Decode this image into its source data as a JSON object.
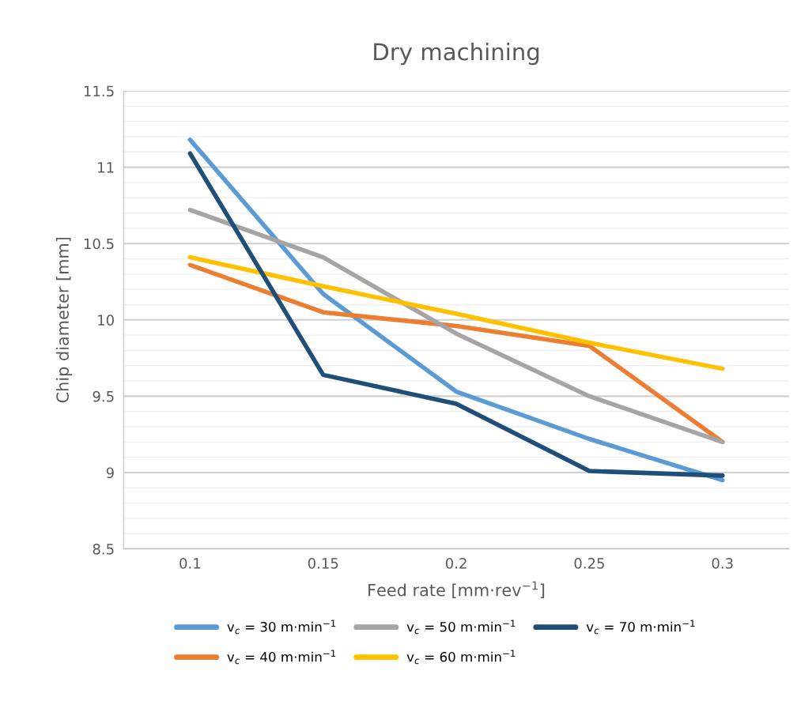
{
  "chart_data": {
    "type": "line",
    "title": "Dry machining",
    "xlabel": "Feed rate [mm·rev$^{−1}$]",
    "ylabel": "Chip diameter [mm]",
    "categories": [
      "0.1",
      "0.15",
      "0.2",
      "0.25",
      "0.3"
    ],
    "series": [
      {
        "name": "v$_{c}$ = 30 m·min$^{−1}$",
        "color": "#5b9bd5",
        "values": [
          11.18,
          10.17,
          9.53,
          9.22,
          8.95
        ]
      },
      {
        "name": "v$_{c}$ = 40 m·min$^{−1}$",
        "color": "#ed7d31",
        "values": [
          10.36,
          10.05,
          9.96,
          9.83,
          9.2
        ]
      },
      {
        "name": "v$_{c}$ = 50 m·min$^{−1}$",
        "color": "#a5a5a5",
        "values": [
          10.72,
          10.41,
          9.91,
          9.5,
          9.2
        ]
      },
      {
        "name": "v$_{c}$ = 60 m·min$^{−1}$",
        "color": "#ffc000",
        "values": [
          10.41,
          10.22,
          10.04,
          9.85,
          9.68
        ]
      },
      {
        "name": "v$_{c}$ = 70 m·min$^{−1}$",
        "color": "#1f4e79",
        "values": [
          11.09,
          9.64,
          9.45,
          9.01,
          8.98
        ]
      }
    ],
    "ylim": [
      8.5,
      11.5
    ],
    "yticks": [
      8.5,
      {
        "value": 8.6,
        "label": null
      },
      {
        "value": 8.7,
        "label": null
      },
      {
        "value": 8.8,
        "label": null
      },
      {
        "value": 8.9,
        "label": null
      },
      {
        "value": 9,
        "label": "9"
      },
      {
        "value": 9.1,
        "label": null
      },
      {
        "value": 9.2,
        "label": null
      },
      {
        "value": 9.3,
        "label": null
      },
      {
        "value": 9.4,
        "label": null
      },
      9.5,
      {
        "value": 9.6,
        "label": null
      },
      {
        "value": 9.7,
        "label": null
      },
      {
        "value": 9.8,
        "label": null
      },
      {
        "value": 9.9,
        "label": null
      },
      {
        "value": 10,
        "label": "10"
      },
      {
        "value": 10.1,
        "label": null
      },
      {
        "value": 10.2,
        "label": null
      },
      {
        "value": 10.3,
        "label": null
      },
      {
        "value": 10.4,
        "label": null
      },
      10.5,
      {
        "value": 10.6,
        "label": null
      },
      {
        "value": 10.7,
        "label": null
      },
      {
        "value": 10.8,
        "label": null
      },
      {
        "value": 10.9,
        "label": null
      },
      {
        "value": 11,
        "label": "11"
      },
      {
        "value": 11.1,
        "label": null
      },
      {
        "value": 11.2,
        "label": null
      },
      {
        "value": 11.3,
        "label": null
      },
      {
        "value": 11.4,
        "label": null
      },
      11.5
    ],
    "grid": "y",
    "legend": "bottom",
    "marker": "none",
    "line_style": "solid"
  }
}
